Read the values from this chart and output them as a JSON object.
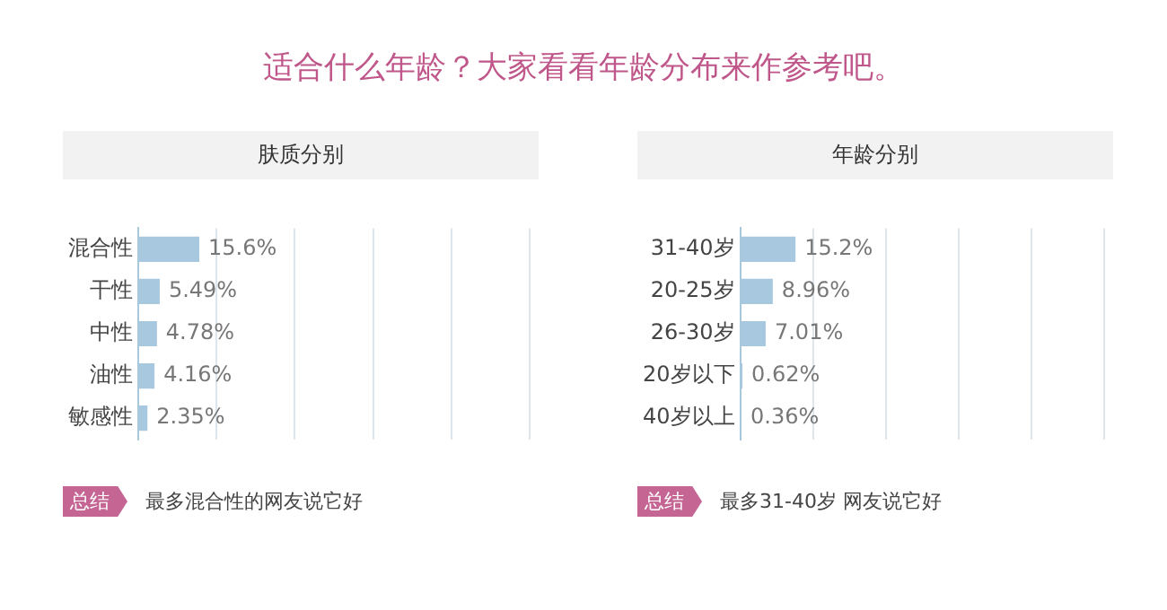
{
  "chart_data": [
    {
      "type": "other",
      "title": "适合什么年龄？大家看看年龄分布来作参考吧。"
    },
    {
      "type": "bar",
      "orientation": "horizontal",
      "title": "肤质分别",
      "categories": [
        "混合性",
        "干性",
        "中性",
        "油性",
        "敏感性"
      ],
      "values": [
        15.6,
        5.49,
        4.78,
        4.16,
        2.35
      ],
      "value_labels": [
        "15.6%",
        "5.49%",
        "4.78%",
        "4.16%",
        "2.35%"
      ],
      "color": "#a7c8df",
      "xlim": [
        0,
        100
      ],
      "tick_labels": "y",
      "grid": "x",
      "annotations": [
        "总结",
        "最多混合性的网友说它好"
      ]
    },
    {
      "type": "bar",
      "orientation": "horizontal",
      "title": "年龄分别",
      "categories": [
        "31-40岁",
        "20-25岁",
        "26-30岁",
        "20岁以下",
        "40岁以上"
      ],
      "values": [
        15.2,
        8.96,
        7.01,
        0.62,
        0.36
      ],
      "value_labels": [
        "15.2%",
        "8.96%",
        "7.01%",
        "0.62%",
        "0.36%"
      ],
      "color": "#a7c8df",
      "xlim": [
        0,
        100
      ],
      "tick_labels": "y",
      "grid": "x",
      "annotations": [
        "总结",
        "最多31-40岁 网友说它好"
      ]
    }
  ]
}
